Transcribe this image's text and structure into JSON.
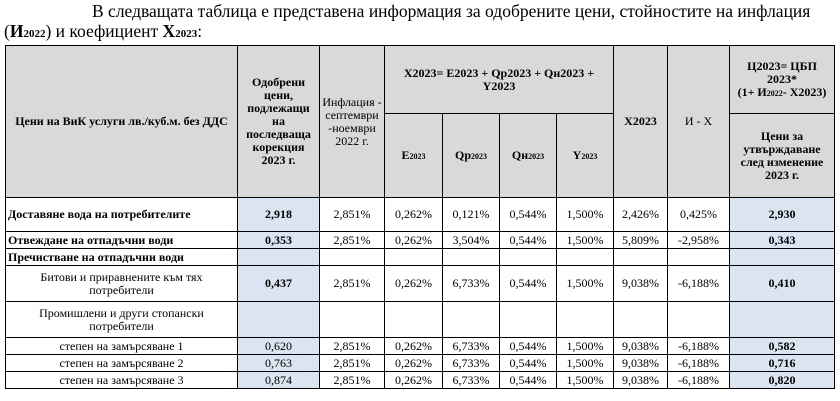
{
  "intro": {
    "line_part1": "В следващата таблица е представена информация за одобрените цени, стойностите на инфлация (",
    "infl_symbol": "И",
    "infl_sub": "2022",
    "line_part2": ") и коефициент ",
    "x_symbol": "X",
    "x_sub": "2023",
    "line_end": ":"
  },
  "header": {
    "col_service": "Цени на ВиК услуги лв./куб.м. без ДДС",
    "col_approved": "Одобрени цени, подлежащи на последваща корекция 2023 г.",
    "col_inflation": "Инфлация - септември -ноември 2022 г.",
    "formula": "X2023= E2023 + Qp2023 + Qн2023 + Y2023",
    "e_main": "E",
    "e_sub": "2023",
    "qp_main": "Qp",
    "qp_sub": "2023",
    "qn_main": "Qн",
    "qn_sub": "2023",
    "y_main": "Y",
    "y_sub": "2023",
    "col_x2023": "X2023",
    "col_ix": "И - X",
    "col_price_formula_1": "Ц2023= ЦБП 2023*",
    "col_price_formula_2": "(1+ И",
    "col_price_formula_sub": "2022",
    "col_price_formula_3": "- X2023)",
    "col_price_final": "Цени за утвърждаване след изменение 2023 г."
  },
  "rows": [
    {
      "label": "Доставяне вода на потребителите",
      "approved": "2,918",
      "infl": "2,851%",
      "e": "0,262%",
      "qp": "0,121%",
      "qn": "0,544%",
      "y": "1,500%",
      "x": "2,426%",
      "ix": "0,425%",
      "price": "2,930"
    },
    {
      "label": "Отвеждане на отпадъчни води",
      "approved": "0,353",
      "infl": "2,851%",
      "e": "0,262%",
      "qp": "3,504%",
      "qn": "0,544%",
      "y": "1,500%",
      "x": "5,809%",
      "ix": "-2,958%",
      "price": "0,343"
    },
    {
      "label": "Пречистване на отпадъчни води"
    },
    {
      "label": "Битови и приравнените към тях потребители",
      "approved": "0,437",
      "infl": "2,851%",
      "e": "0,262%",
      "qp": "6,733%",
      "qn": "0,544%",
      "y": "1,500%",
      "x": "9,038%",
      "ix": "-6,188%",
      "price": "0,410"
    },
    {
      "label": "Промишлени и други стопански потребители"
    },
    {
      "label": "степен на замърсяване 1",
      "approved": "0,620",
      "infl": "2,851%",
      "e": "0,262%",
      "qp": "6,733%",
      "qn": "0,544%",
      "y": "1,500%",
      "x": "9,038%",
      "ix": "-6,188%",
      "price": "0,582"
    },
    {
      "label": "степен на замърсяване 2",
      "approved": "0,763",
      "infl": "2,851%",
      "e": "0,262%",
      "qp": "6,733%",
      "qn": "0,544%",
      "y": "1,500%",
      "x": "9,038%",
      "ix": "-6,188%",
      "price": "0,716"
    },
    {
      "label": "степен на замърсяване 3",
      "approved": "0,874",
      "infl": "2,851%",
      "e": "0,262%",
      "qp": "6,733%",
      "qn": "0,544%",
      "y": "1,500%",
      "x": "9,038%",
      "ix": "-6,188%",
      "price": "0,820"
    }
  ]
}
